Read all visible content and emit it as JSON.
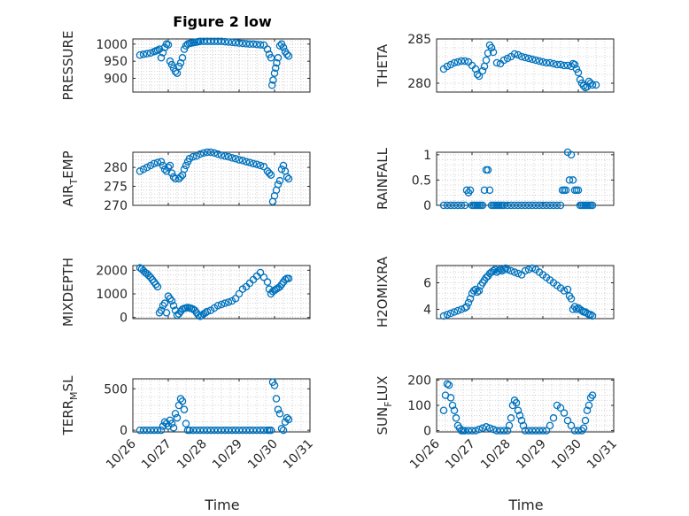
{
  "figure": {
    "title": "Figure 2 low",
    "xlabel": "Time",
    "xticks": [
      "10/26",
      "10/27",
      "10/28",
      "10/29",
      "10/30",
      "10/31"
    ]
  },
  "chart_data": [
    {
      "type": "scatter",
      "ylabel": "PRESSURE",
      "title": "Figure 2 low",
      "xlim": [
        0,
        5
      ],
      "ylim": [
        860,
        1015
      ],
      "yticks": [
        900,
        950,
        1000
      ],
      "x": [
        0.2,
        0.3,
        0.4,
        0.5,
        0.6,
        0.65,
        0.7,
        0.75,
        0.8,
        0.85,
        0.9,
        0.95,
        1.0,
        1.05,
        1.1,
        1.15,
        1.2,
        1.25,
        1.3,
        1.35,
        1.4,
        1.45,
        1.5,
        1.55,
        1.6,
        1.65,
        1.7,
        1.75,
        1.8,
        1.85,
        1.9,
        2.0,
        2.1,
        2.2,
        2.3,
        2.4,
        2.5,
        2.6,
        2.7,
        2.8,
        2.9,
        3.0,
        3.1,
        3.2,
        3.3,
        3.4,
        3.5,
        3.6,
        3.7,
        3.8,
        3.85,
        3.9,
        3.93,
        3.96,
        4.0,
        4.03,
        4.06,
        4.1,
        4.15,
        4.2,
        4.25,
        4.3,
        4.35,
        4.4
      ],
      "y": [
        968,
        970,
        972,
        974,
        978,
        980,
        982,
        985,
        960,
        975,
        990,
        1000,
        998,
        950,
        940,
        930,
        920,
        915,
        935,
        945,
        960,
        985,
        995,
        1000,
        1002,
        1003,
        1004,
        1005,
        1006,
        1007,
        1008,
        1008,
        1008,
        1008,
        1008,
        1008,
        1008,
        1007,
        1006,
        1005,
        1004,
        1003,
        1002,
        1001,
        1000,
        1000,
        999,
        998,
        997,
        985,
        970,
        960,
        880,
        895,
        915,
        930,
        945,
        960,
        995,
        1000,
        990,
        978,
        970,
        965
      ]
    },
    {
      "type": "scatter",
      "ylabel": "THETA",
      "xlim": [
        0,
        5
      ],
      "ylim": [
        279,
        285
      ],
      "yticks": [
        280,
        285
      ],
      "x": [
        0.2,
        0.3,
        0.4,
        0.5,
        0.6,
        0.7,
        0.8,
        0.9,
        1.0,
        1.1,
        1.15,
        1.2,
        1.3,
        1.35,
        1.4,
        1.45,
        1.5,
        1.55,
        1.6,
        1.7,
        1.8,
        1.9,
        2.0,
        2.1,
        2.2,
        2.3,
        2.4,
        2.5,
        2.6,
        2.7,
        2.8,
        2.9,
        3.0,
        3.1,
        3.2,
        3.3,
        3.4,
        3.5,
        3.6,
        3.7,
        3.8,
        3.85,
        3.9,
        3.95,
        4.0,
        4.05,
        4.1,
        4.15,
        4.2,
        4.25,
        4.3,
        4.35,
        4.4,
        4.5
      ],
      "y": [
        281.6,
        281.9,
        282.1,
        282.3,
        282.4,
        282.5,
        282.5,
        282.4,
        282.0,
        281.6,
        281.0,
        280.8,
        281.4,
        281.9,
        282.6,
        283.4,
        284.3,
        284.0,
        283.5,
        282.3,
        282.2,
        282.6,
        282.8,
        283.0,
        283.3,
        283.2,
        283.0,
        282.9,
        282.8,
        282.7,
        282.6,
        282.5,
        282.4,
        282.3,
        282.3,
        282.2,
        282.1,
        282.1,
        282.0,
        282.0,
        281.9,
        282.2,
        282.1,
        281.6,
        281.2,
        280.4,
        280.0,
        279.7,
        279.5,
        279.6,
        280.2,
        280.0,
        279.8,
        279.8
      ]
    },
    {
      "type": "scatter",
      "ylabel": "AIR_TEMP",
      "xlim": [
        0,
        5
      ],
      "ylim": [
        270,
        284
      ],
      "yticks": [
        270,
        275,
        280
      ],
      "x": [
        0.2,
        0.3,
        0.4,
        0.5,
        0.6,
        0.7,
        0.8,
        0.85,
        0.9,
        0.95,
        1.0,
        1.05,
        1.1,
        1.15,
        1.2,
        1.3,
        1.35,
        1.4,
        1.45,
        1.5,
        1.55,
        1.6,
        1.7,
        1.8,
        1.9,
        2.0,
        2.1,
        2.2,
        2.3,
        2.4,
        2.5,
        2.6,
        2.7,
        2.8,
        2.9,
        3.0,
        3.1,
        3.2,
        3.3,
        3.4,
        3.5,
        3.6,
        3.7,
        3.8,
        3.85,
        3.9,
        3.95,
        4.0,
        4.05,
        4.1,
        4.15,
        4.2,
        4.25,
        4.3,
        4.35,
        4.4
      ],
      "y": [
        279.0,
        279.5,
        280.0,
        280.5,
        281.0,
        281.3,
        281.5,
        280.5,
        279.5,
        279.0,
        280.0,
        280.5,
        278.5,
        277.5,
        277.0,
        277.0,
        277.5,
        278.0,
        279.5,
        280.5,
        281.5,
        282.3,
        282.8,
        283.0,
        283.5,
        283.8,
        284.0,
        284.0,
        283.8,
        283.5,
        283.2,
        283.0,
        282.8,
        282.5,
        282.3,
        282.0,
        281.8,
        281.5,
        281.3,
        281.0,
        280.8,
        280.5,
        280.2,
        279.0,
        278.5,
        278.0,
        271.0,
        272.5,
        274.0,
        275.5,
        276.5,
        279.5,
        280.5,
        279.0,
        277.5,
        277.0
      ]
    },
    {
      "type": "scatter",
      "ylabel": "RAINFALL",
      "xlim": [
        0,
        5
      ],
      "ylim": [
        0,
        1.05
      ],
      "yticks": [
        0,
        0.5,
        1
      ],
      "x": [
        0.2,
        0.3,
        0.4,
        0.5,
        0.6,
        0.7,
        0.8,
        0.85,
        0.9,
        0.95,
        1.0,
        1.05,
        1.1,
        1.15,
        1.2,
        1.25,
        1.3,
        1.35,
        1.4,
        1.45,
        1.5,
        1.55,
        1.6,
        1.65,
        1.7,
        1.75,
        1.8,
        1.85,
        1.9,
        2.0,
        2.1,
        2.2,
        2.3,
        2.4,
        2.5,
        2.6,
        2.7,
        2.8,
        2.9,
        3.0,
        3.1,
        3.2,
        3.3,
        3.4,
        3.5,
        3.55,
        3.6,
        3.65,
        3.7,
        3.75,
        3.8,
        3.85,
        3.9,
        3.95,
        4.0,
        4.05,
        4.1,
        4.15,
        4.2,
        4.25,
        4.3,
        4.35,
        4.4
      ],
      "y": [
        0,
        0,
        0,
        0,
        0,
        0,
        0,
        0.3,
        0.25,
        0.3,
        0,
        0,
        0,
        0,
        0,
        0,
        0,
        0.3,
        0.7,
        0.7,
        0.3,
        0,
        0,
        0,
        0,
        0,
        0,
        0,
        0,
        0,
        0,
        0,
        0,
        0,
        0,
        0,
        0,
        0,
        0,
        0,
        0,
        0,
        0,
        0,
        0,
        0.3,
        0.3,
        0.3,
        1.05,
        0.5,
        1.0,
        0.5,
        0.3,
        0.3,
        0.3,
        0,
        0,
        0,
        0,
        0,
        0,
        0,
        0
      ]
    },
    {
      "type": "scatter",
      "ylabel": "MIXDEPTH",
      "xlim": [
        0,
        5
      ],
      "ylim": [
        -50,
        2200
      ],
      "yticks": [
        0,
        1000,
        2000
      ],
      "x": [
        0.2,
        0.25,
        0.3,
        0.35,
        0.4,
        0.45,
        0.5,
        0.55,
        0.6,
        0.65,
        0.7,
        0.75,
        0.8,
        0.85,
        0.9,
        0.95,
        1.0,
        1.05,
        1.1,
        1.15,
        1.2,
        1.25,
        1.3,
        1.35,
        1.4,
        1.45,
        1.5,
        1.55,
        1.6,
        1.65,
        1.7,
        1.75,
        1.8,
        1.85,
        1.9,
        1.95,
        2.0,
        2.05,
        2.1,
        2.2,
        2.3,
        2.4,
        2.5,
        2.6,
        2.7,
        2.8,
        2.9,
        3.0,
        3.1,
        3.2,
        3.3,
        3.4,
        3.5,
        3.6,
        3.7,
        3.8,
        3.85,
        3.9,
        3.95,
        4.0,
        4.05,
        4.1,
        4.15,
        4.2,
        4.25,
        4.3,
        4.35,
        4.4
      ],
      "y": [
        2100,
        2050,
        1980,
        1900,
        1850,
        1780,
        1700,
        1600,
        1500,
        1400,
        1300,
        200,
        300,
        500,
        600,
        200,
        900,
        800,
        700,
        500,
        300,
        100,
        150,
        250,
        350,
        380,
        400,
        420,
        400,
        380,
        350,
        300,
        200,
        100,
        50,
        80,
        150,
        200,
        250,
        300,
        400,
        500,
        550,
        600,
        650,
        700,
        800,
        1000,
        1200,
        1300,
        1450,
        1600,
        1750,
        1900,
        1700,
        1500,
        1200,
        1000,
        1100,
        1150,
        1200,
        1250,
        1300,
        1400,
        1500,
        1600,
        1650,
        1650
      ]
    },
    {
      "type": "scatter",
      "ylabel": "H2OMIXRA",
      "xlim": [
        0,
        5
      ],
      "ylim": [
        3.3,
        7.3
      ],
      "yticks": [
        4,
        6
      ],
      "x": [
        0.2,
        0.3,
        0.4,
        0.5,
        0.6,
        0.7,
        0.8,
        0.85,
        0.9,
        0.95,
        1.0,
        1.05,
        1.1,
        1.15,
        1.2,
        1.25,
        1.3,
        1.35,
        1.4,
        1.45,
        1.5,
        1.55,
        1.6,
        1.65,
        1.7,
        1.75,
        1.8,
        1.85,
        1.9,
        1.95,
        2.0,
        2.1,
        2.2,
        2.3,
        2.4,
        2.5,
        2.6,
        2.7,
        2.8,
        2.9,
        3.0,
        3.1,
        3.2,
        3.3,
        3.4,
        3.5,
        3.6,
        3.7,
        3.75,
        3.8,
        3.85,
        3.9,
        3.95,
        4.0,
        4.05,
        4.1,
        4.15,
        4.2,
        4.25,
        4.3,
        4.35,
        4.4
      ],
      "y": [
        3.5,
        3.6,
        3.7,
        3.8,
        3.9,
        4.0,
        4.1,
        4.2,
        4.5,
        4.8,
        5.2,
        5.4,
        5.5,
        5.3,
        5.4,
        5.8,
        6.0,
        6.2,
        6.4,
        6.5,
        6.7,
        6.8,
        6.9,
        7.0,
        6.8,
        6.9,
        7.0,
        6.9,
        7.0,
        7.1,
        7.0,
        6.9,
        6.8,
        6.7,
        6.6,
        6.9,
        7.0,
        7.1,
        7.0,
        6.8,
        6.6,
        6.4,
        6.2,
        6.0,
        5.8,
        5.6,
        5.4,
        5.5,
        5.0,
        4.8,
        4.0,
        4.2,
        4.0,
        4.1,
        4.0,
        3.9,
        3.8,
        3.8,
        3.7,
        3.6,
        3.6,
        3.5
      ]
    },
    {
      "type": "scatter",
      "ylabel": "TERR_MSL",
      "xlim": [
        0,
        5
      ],
      "ylim": [
        -20,
        620
      ],
      "yticks": [
        0,
        500
      ],
      "x": [
        0.2,
        0.3,
        0.4,
        0.5,
        0.6,
        0.7,
        0.8,
        0.85,
        0.9,
        0.95,
        1.0,
        1.05,
        1.1,
        1.15,
        1.2,
        1.25,
        1.3,
        1.35,
        1.4,
        1.45,
        1.5,
        1.55,
        1.6,
        1.7,
        1.8,
        1.9,
        2.0,
        2.1,
        2.2,
        2.3,
        2.4,
        2.5,
        2.6,
        2.7,
        2.8,
        2.9,
        3.0,
        3.1,
        3.2,
        3.3,
        3.4,
        3.5,
        3.6,
        3.7,
        3.8,
        3.85,
        3.9,
        3.95,
        4.0,
        4.05,
        4.1,
        4.15,
        4.2,
        4.25,
        4.3,
        4.35,
        4.4
      ],
      "y": [
        0,
        0,
        0,
        0,
        0,
        0,
        0,
        50,
        100,
        80,
        50,
        120,
        80,
        30,
        200,
        150,
        300,
        380,
        350,
        250,
        80,
        0,
        0,
        0,
        0,
        0,
        0,
        0,
        0,
        0,
        0,
        0,
        0,
        0,
        0,
        0,
        0,
        0,
        0,
        0,
        0,
        0,
        0,
        0,
        0,
        0,
        0,
        580,
        540,
        380,
        250,
        200,
        20,
        0,
        100,
        150,
        130
      ]
    },
    {
      "type": "scatter",
      "ylabel": "SUN_FLUX",
      "xlim": [
        0,
        5
      ],
      "ylim": [
        -5,
        205
      ],
      "yticks": [
        0,
        100,
        200
      ],
      "x": [
        0.2,
        0.25,
        0.3,
        0.35,
        0.4,
        0.45,
        0.5,
        0.55,
        0.6,
        0.65,
        0.7,
        0.75,
        0.8,
        0.9,
        1.0,
        1.1,
        1.2,
        1.3,
        1.4,
        1.5,
        1.6,
        1.7,
        1.8,
        1.9,
        2.0,
        2.05,
        2.1,
        2.15,
        2.2,
        2.25,
        2.3,
        2.35,
        2.4,
        2.45,
        2.5,
        2.6,
        2.7,
        2.8,
        2.9,
        3.0,
        3.1,
        3.2,
        3.3,
        3.4,
        3.5,
        3.6,
        3.7,
        3.8,
        3.9,
        4.0,
        4.1,
        4.15,
        4.2,
        4.25,
        4.3,
        4.35,
        4.4
      ],
      "y": [
        80,
        140,
        185,
        180,
        130,
        100,
        80,
        50,
        20,
        10,
        0,
        0,
        0,
        0,
        0,
        0,
        5,
        10,
        15,
        10,
        5,
        0,
        0,
        0,
        0,
        20,
        50,
        100,
        120,
        110,
        80,
        60,
        40,
        20,
        0,
        0,
        0,
        0,
        0,
        0,
        0,
        20,
        50,
        100,
        90,
        70,
        40,
        20,
        0,
        0,
        0,
        10,
        40,
        80,
        100,
        130,
        140
      ]
    }
  ]
}
